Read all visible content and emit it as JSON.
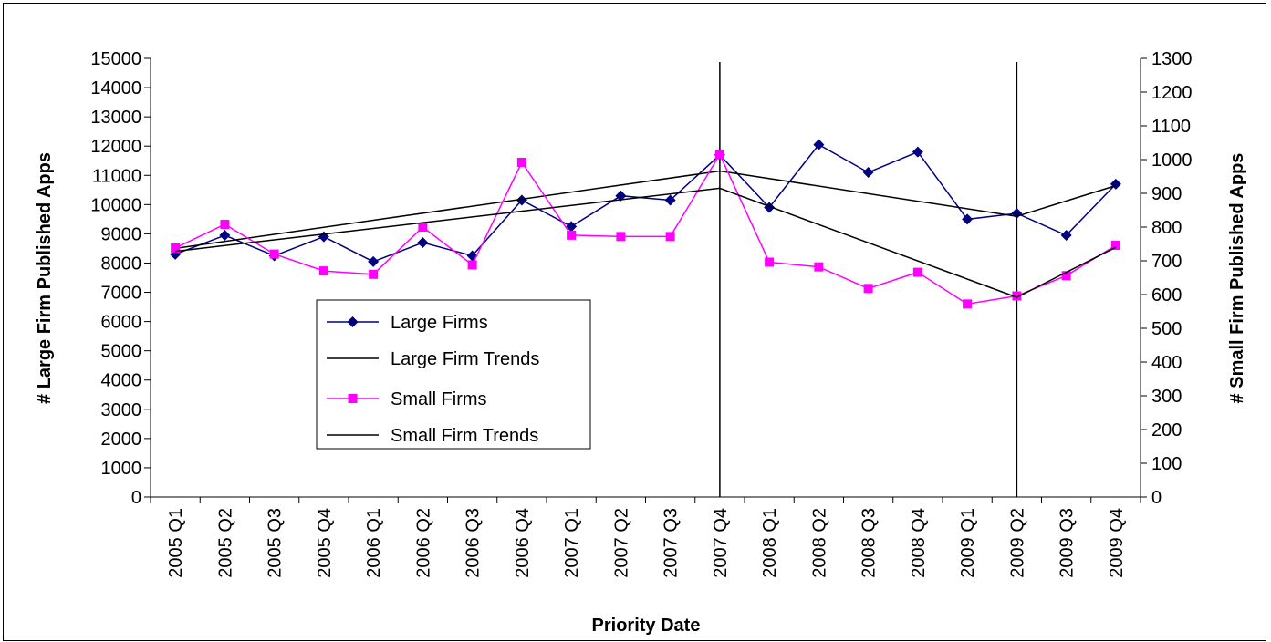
{
  "chart_data": {
    "type": "line",
    "title": "",
    "xlabel": "Priority Date",
    "ylabel_left": "# Large Firm Published Apps",
    "ylabel_right": "# Small Firm Published Apps",
    "categories": [
      "2005 Q1",
      "2005 Q2",
      "2005 Q3",
      "2005 Q4",
      "2006 Q1",
      "2006 Q2",
      "2006 Q3",
      "2006 Q4",
      "2007 Q1",
      "2007 Q2",
      "2007 Q3",
      "2007 Q4",
      "2008 Q1",
      "2008 Q2",
      "2008 Q3",
      "2008 Q4",
      "2009 Q1",
      "2009 Q2",
      "2009 Q3",
      "2009 Q4"
    ],
    "ylim_left": [
      0,
      15000
    ],
    "yticks_left": [
      0,
      1000,
      2000,
      3000,
      4000,
      5000,
      6000,
      7000,
      8000,
      9000,
      10000,
      11000,
      12000,
      13000,
      14000,
      15000
    ],
    "ylim_right": [
      0,
      1300
    ],
    "yticks_right": [
      0,
      100,
      200,
      300,
      400,
      500,
      600,
      700,
      800,
      900,
      1000,
      1100,
      1200,
      1300
    ],
    "vertical_lines": [
      "2007 Q4",
      "2009 Q2"
    ],
    "legend_position": "center-left",
    "series": [
      {
        "name": "Large Firms",
        "axis": "left",
        "color": "#000080",
        "marker": "diamond",
        "values": [
          8300,
          8950,
          8250,
          8900,
          8050,
          8700,
          8250,
          10150,
          9250,
          10300,
          10150,
          11700,
          9900,
          12050,
          11100,
          11800,
          9500,
          9700,
          8950,
          10700
        ]
      },
      {
        "name": "Large Firm Trends",
        "axis": "left",
        "color": "#000000",
        "marker": "none",
        "points": [
          {
            "x": "2005 Q1",
            "y": 8500
          },
          {
            "x": "2007 Q4",
            "y": 11150
          },
          {
            "x": "2009 Q2",
            "y": 9600
          },
          {
            "x": "2009 Q4",
            "y": 10650
          }
        ]
      },
      {
        "name": "Small Firms",
        "axis": "right",
        "color": "#FF00FF",
        "marker": "square",
        "values": [
          738,
          808,
          720,
          670,
          660,
          800,
          688,
          992,
          776,
          772,
          772,
          1015,
          696,
          682,
          618,
          666,
          572,
          596,
          656,
          746
        ]
      },
      {
        "name": "Small Firm Trends",
        "axis": "right",
        "color": "#000000",
        "marker": "none",
        "points": [
          {
            "x": "2005 Q1",
            "y": 728
          },
          {
            "x": "2007 Q4",
            "y": 915
          },
          {
            "x": "2009 Q2",
            "y": 592
          },
          {
            "x": "2009 Q4",
            "y": 740
          }
        ]
      }
    ]
  }
}
